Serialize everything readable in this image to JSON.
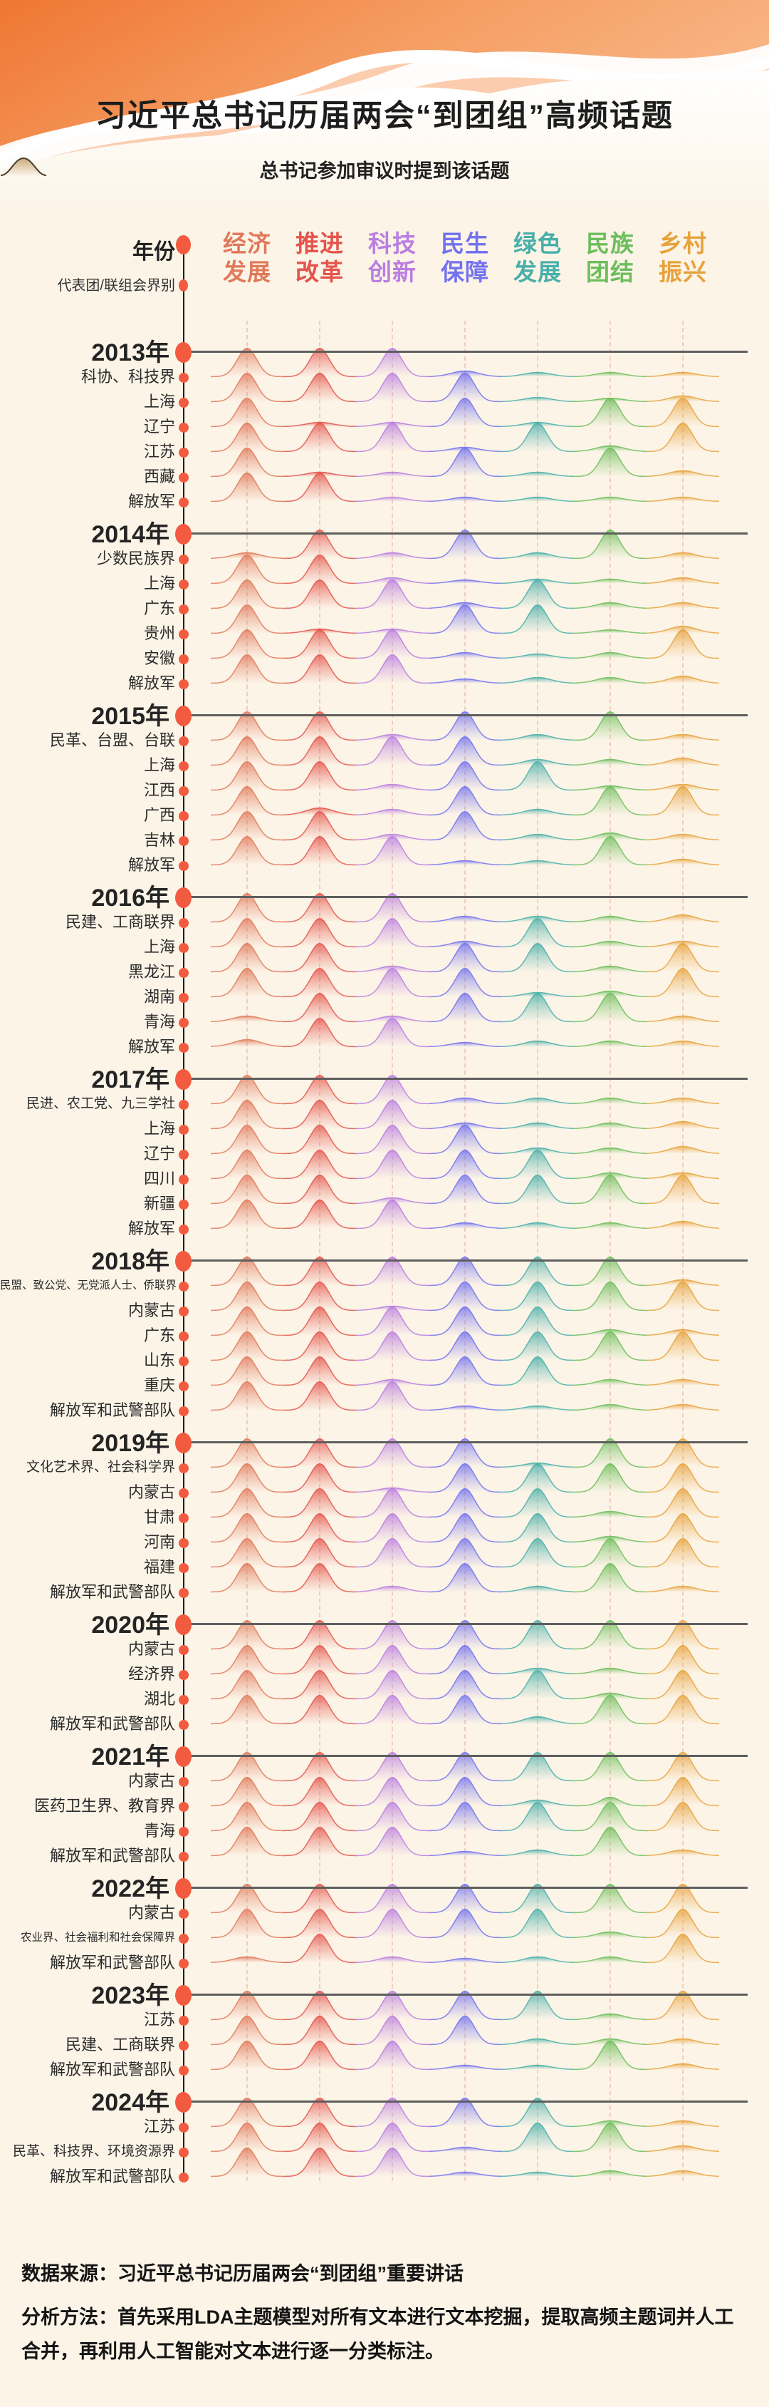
{
  "page": {
    "title": "习近平总书记历届两会“到团组”高频话题",
    "legend_text": "总书记参加审议时提到该话题"
  },
  "columns": {
    "year_label": "年份",
    "group_label": "代表团/联组会界别",
    "topics": [
      {
        "line1": "经济",
        "line2": "发展",
        "color": "#E0795A"
      },
      {
        "line1": "推进",
        "line2": "改革",
        "color": "#E4544C"
      },
      {
        "line1": "科技",
        "line2": "创新",
        "color": "#BA7EE0"
      },
      {
        "line1": "民生",
        "line2": "保障",
        "color": "#7372EF"
      },
      {
        "line1": "绿色",
        "line2": "发展",
        "color": "#49AFA9"
      },
      {
        "line1": "民族",
        "line2": "团结",
        "color": "#6CBE5B"
      },
      {
        "line1": "乡村",
        "line2": "振兴",
        "color": "#E7A23C"
      }
    ]
  },
  "chart_data": {
    "type": "area",
    "subtype": "ridgeline-grid",
    "note": "each cell is a hill whose height (0-1) shows how strongly the topic was mentioned",
    "columns": [
      "经济发展",
      "推进改革",
      "科技创新",
      "民生保障",
      "绿色发展",
      "民族团结",
      "乡村振兴"
    ],
    "years": [
      {
        "year": "2013年",
        "rows": [
          {
            "label": "科协、科技界",
            "values": [
              1,
              1,
              1,
              0.2,
              0.15,
              0.15,
              0.15
            ]
          },
          {
            "label": "上海",
            "values": [
              1,
              1,
              1,
              1,
              0.15,
              0.12,
              0.2
            ]
          },
          {
            "label": "辽宁",
            "values": [
              1,
              0.15,
              0.15,
              1,
              0.15,
              1,
              1
            ]
          },
          {
            "label": "江苏",
            "values": [
              1,
              1,
              1,
              0.15,
              1,
              0.2,
              1
            ]
          },
          {
            "label": "西藏",
            "values": [
              1,
              0.15,
              0.15,
              1,
              0.15,
              1,
              0.2
            ]
          },
          {
            "label": "解放军",
            "values": [
              1,
              1,
              0.15,
              0.15,
              0.15,
              0.15,
              0.15
            ]
          }
        ]
      },
      {
        "year": "2014年",
        "rows": [
          {
            "label": "少数民族界",
            "values": [
              0.2,
              1,
              0.2,
              1,
              0.2,
              1,
              0.2
            ]
          },
          {
            "label": "上海",
            "values": [
              1,
              1,
              0.2,
              0.12,
              0.15,
              0.15,
              0.2
            ]
          },
          {
            "label": "广东",
            "values": [
              1,
              1,
              1,
              0.2,
              1,
              0.2,
              0.2
            ]
          },
          {
            "label": "贵州",
            "values": [
              1,
              0.15,
              0.15,
              1,
              1,
              0.12,
              0.25
            ]
          },
          {
            "label": "安徽",
            "values": [
              1,
              1,
              1,
              0.2,
              0.15,
              0.2,
              1
            ]
          },
          {
            "label": "解放军",
            "values": [
              1,
              1,
              1,
              0.15,
              0.2,
              0.2,
              0.25
            ]
          }
        ]
      },
      {
        "year": "2015年",
        "rows": [
          {
            "label": "民革、台盟、台联",
            "values": [
              1,
              1,
              0.2,
              1,
              0.2,
              1,
              0.2
            ]
          },
          {
            "label": "上海",
            "values": [
              1,
              1,
              1,
              1,
              0.2,
              0.2,
              0.25
            ]
          },
          {
            "label": "江西",
            "values": [
              1,
              1,
              0.2,
              1,
              1,
              0.15,
              0.2
            ]
          },
          {
            "label": "广西",
            "values": [
              1,
              0.25,
              0.2,
              1,
              0.2,
              1,
              1
            ]
          },
          {
            "label": "吉林",
            "values": [
              1,
              1,
              0.2,
              1,
              0.2,
              0.25,
              0.2
            ]
          },
          {
            "label": "解放军",
            "values": [
              1,
              1,
              1,
              0.15,
              0.15,
              1,
              0.2
            ]
          }
        ]
      },
      {
        "year": "2016年",
        "rows": [
          {
            "label": "民建、工商联界",
            "values": [
              1,
              1,
              1,
              0.2,
              0.2,
              0.2,
              0.25
            ]
          },
          {
            "label": "上海",
            "values": [
              1,
              1,
              1,
              0.2,
              1,
              0.2,
              0.2
            ]
          },
          {
            "label": "黑龙江",
            "values": [
              1,
              1,
              0.2,
              1,
              1,
              0.2,
              1
            ]
          },
          {
            "label": "湖南",
            "values": [
              1,
              1,
              1,
              1,
              0.15,
              0.2,
              1
            ]
          },
          {
            "label": "青海",
            "values": [
              0.2,
              1,
              0.2,
              1,
              1,
              1,
              0.2
            ]
          },
          {
            "label": "解放军",
            "values": [
              0.25,
              1,
              1,
              0.15,
              0.2,
              0.2,
              0.2
            ]
          }
        ]
      },
      {
        "year": "2017年",
        "rows": [
          {
            "label": "民进、农工党、九三学社",
            "values": [
              1,
              1,
              1,
              0.2,
              0.2,
              0.2,
              0.2
            ]
          },
          {
            "label": "上海",
            "values": [
              1,
              1,
              1,
              0.2,
              0.2,
              0.2,
              0.25
            ]
          },
          {
            "label": "辽宁",
            "values": [
              1,
              1,
              1,
              1,
              0.2,
              0.2,
              0.25
            ]
          },
          {
            "label": "四川",
            "values": [
              1,
              1,
              1,
              1,
              1,
              0.2,
              0.2
            ]
          },
          {
            "label": "新疆",
            "values": [
              1,
              1,
              0.2,
              1,
              1,
              1,
              1
            ]
          },
          {
            "label": "解放军",
            "values": [
              1,
              1,
              1,
              0.2,
              0.2,
              0.2,
              0.25
            ]
          }
        ]
      },
      {
        "year": "2018年",
        "rows": [
          {
            "label": "民盟、致公党、无党派人士、侨联界",
            "values": [
              1,
              1,
              1,
              1,
              1,
              1,
              0.2
            ]
          },
          {
            "label": "内蒙古",
            "values": [
              1,
              1,
              0.15,
              1,
              1,
              1,
              1
            ]
          },
          {
            "label": "广东",
            "values": [
              1,
              1,
              1,
              1,
              1,
              0.2,
              0.2
            ]
          },
          {
            "label": "山东",
            "values": [
              1,
              1,
              1,
              1,
              1,
              1,
              1
            ]
          },
          {
            "label": "重庆",
            "values": [
              1,
              1,
              0.2,
              1,
              1,
              0.2,
              0.2
            ]
          },
          {
            "label": "解放军和武警部队",
            "values": [
              1,
              1,
              1,
              0.15,
              0.15,
              0.2,
              0.2
            ]
          }
        ]
      },
      {
        "year": "2019年",
        "rows": [
          {
            "label": "文化艺术界、社会科学界",
            "values": [
              1,
              1,
              1,
              1,
              0.15,
              1,
              1
            ]
          },
          {
            "label": "内蒙古",
            "values": [
              1,
              1,
              0.15,
              1,
              1,
              1,
              1
            ]
          },
          {
            "label": "甘肃",
            "values": [
              1,
              1,
              1,
              1,
              1,
              0.2,
              1
            ]
          },
          {
            "label": "河南",
            "values": [
              1,
              1,
              1,
              1,
              1,
              0.2,
              1
            ]
          },
          {
            "label": "福建",
            "values": [
              1,
              1,
              1,
              1,
              1,
              1,
              1
            ]
          },
          {
            "label": "解放军和武警部队",
            "values": [
              1,
              1,
              0.2,
              1,
              0.2,
              1,
              0.2
            ]
          }
        ]
      },
      {
        "year": "2020年",
        "rows": [
          {
            "label": "内蒙古",
            "values": [
              1,
              1,
              1,
              1,
              1,
              1,
              1
            ]
          },
          {
            "label": "经济界",
            "values": [
              1,
              1,
              1,
              1,
              0.2,
              0.2,
              1
            ]
          },
          {
            "label": "湖北",
            "values": [
              1,
              1,
              1,
              1,
              1,
              0.2,
              1
            ]
          },
          {
            "label": "解放军和武警部队",
            "values": [
              1,
              1,
              1,
              1,
              0.25,
              1,
              1
            ]
          }
        ]
      },
      {
        "year": "2021年",
        "rows": [
          {
            "label": "内蒙古",
            "values": [
              1,
              1,
              1,
              1,
              1,
              1,
              1
            ]
          },
          {
            "label": "医药卫生界、教育界",
            "values": [
              1,
              1,
              1,
              1,
              0.2,
              0.3,
              1
            ]
          },
          {
            "label": "青海",
            "values": [
              1,
              1,
              1,
              1,
              1,
              1,
              1
            ]
          },
          {
            "label": "解放军和武警部队",
            "values": [
              1,
              1,
              1,
              0.15,
              0.2,
              1,
              0.2
            ]
          }
        ]
      },
      {
        "year": "2022年",
        "rows": [
          {
            "label": "内蒙古",
            "values": [
              1,
              1,
              1,
              1,
              1,
              1,
              1
            ]
          },
          {
            "label": "农业界、社会福利和社会保障界",
            "values": [
              1,
              1,
              1,
              1,
              1,
              0.2,
              1
            ]
          },
          {
            "label": "解放军和武警部队",
            "values": [
              0.2,
              1,
              0.2,
              0.15,
              0.2,
              0.2,
              1
            ]
          }
        ]
      },
      {
        "year": "2023年",
        "rows": [
          {
            "label": "江苏",
            "values": [
              1,
              1,
              1,
              1,
              1,
              0.2,
              1
            ]
          },
          {
            "label": "民建、工商联界",
            "values": [
              1,
              1,
              1,
              1,
              0.2,
              0.2,
              0.2
            ]
          },
          {
            "label": "解放军和武警部队",
            "values": [
              1,
              1,
              1,
              0.15,
              0.15,
              1,
              0.2
            ]
          }
        ]
      },
      {
        "year": "2024年",
        "rows": [
          {
            "label": "江苏",
            "values": [
              1,
              1,
              1,
              1,
              1,
              0.2,
              0.2
            ]
          },
          {
            "label": "民革、科技界、环境资源界",
            "values": [
              1,
              1,
              1,
              0.15,
              1,
              1,
              0.2
            ]
          },
          {
            "label": "解放军和武警部队",
            "values": [
              1,
              1,
              1,
              0.15,
              0.15,
              0.2,
              0.2
            ]
          }
        ]
      }
    ]
  },
  "footer": {
    "source": "数据来源：习近平总书记历届两会“到团组”重要讲话",
    "method": "分析方法：首先采用LDA主题模型对所有文本进行文本挖掘，提取高频主题词并人工合并，再利用人工智能对文本进行逐一分类标注。"
  },
  "colors": {
    "background": "#FCF4E7",
    "timeline_dot": "#F25B40",
    "year_line": "#5E5E5E",
    "banner_orange": "#F0823F"
  }
}
